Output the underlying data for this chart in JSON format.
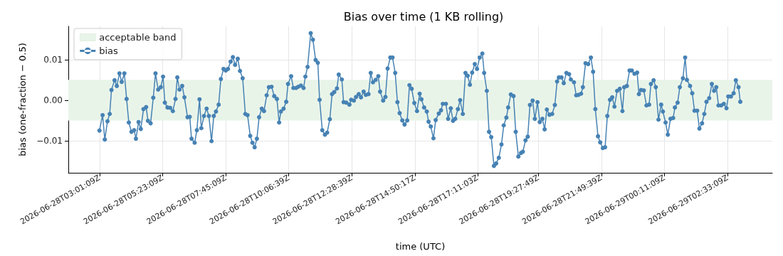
{
  "chart_data": {
    "type": "line",
    "title": "Bias over time (1 KB rolling)",
    "xlabel": "time (UTC)",
    "ylabel": "bias (one-fraction − 0.5)",
    "xlim": [
      "2026-06-28T01:51",
      "2026-06-29T04:14"
    ],
    "ylim": [
      -0.0179,
      0.0182
    ],
    "xticks": [
      {
        "value": "2026-06-28T03:01:09",
        "label": "2026-06-28T03:01:09Z"
      },
      {
        "value": "2026-06-28T05:23:09",
        "label": "2026-06-28T05:23:09Z"
      },
      {
        "value": "2026-06-28T07:45:09",
        "label": "2026-06-28T07:45:09Z"
      },
      {
        "value": "2026-06-28T10:06:39",
        "label": "2026-06-28T10:06:39Z"
      },
      {
        "value": "2026-06-28T12:28:39",
        "label": "2026-06-28T12:28:39Z"
      },
      {
        "value": "2026-06-28T14:50:17",
        "label": "2026-06-28T14:50:17Z"
      },
      {
        "value": "2026-06-28T17:11:03",
        "label": "2026-06-28T17:11:03Z"
      },
      {
        "value": "2026-06-28T19:27:49",
        "label": "2026-06-28T19:27:49Z"
      },
      {
        "value": "2026-06-28T21:49:39",
        "label": "2026-06-28T21:49:39Z"
      },
      {
        "value": "2026-06-29T00:11:09",
        "label": "2026-06-29T00:11:09Z"
      },
      {
        "value": "2026-06-29T02:33:09",
        "label": "2026-06-29T02:33:09Z"
      }
    ],
    "yticks": [
      {
        "value": -0.01,
        "label": "−0.01"
      },
      {
        "value": 0,
        "label": "0.00"
      },
      {
        "value": 0.01,
        "label": "0.01"
      }
    ],
    "grid": true,
    "legend": "top left",
    "marker": "circle",
    "line_style": "solid",
    "bands": [
      {
        "axis": "y",
        "from": -0.005,
        "to": 0.005,
        "label": "acceptable band",
        "color": "#e9f4e9"
      }
    ],
    "series": [
      {
        "name": "bias",
        "color": "#4682b4",
        "x": [
          "2026-06-28T03:01",
          "2026-06-28T03:08",
          "2026-06-28T03:13",
          "2026-06-28T03:19",
          "2026-06-28T03:24",
          "2026-06-28T03:28",
          "2026-06-28T03:35",
          "2026-06-28T03:40",
          "2026-06-28T03:46",
          "2026-06-28T03:51",
          "2026-06-28T03:57",
          "2026-06-28T04:02",
          "2026-06-28T04:07",
          "2026-06-28T04:13",
          "2026-06-28T04:19",
          "2026-06-28T04:23",
          "2026-06-28T04:29",
          "2026-06-28T04:34",
          "2026-06-28T04:40",
          "2026-06-28T04:46",
          "2026-06-28T04:50",
          "2026-06-28T04:56",
          "2026-06-28T05:02",
          "2026-06-28T05:07",
          "2026-06-28T05:13",
          "2026-06-28T05:19",
          "2026-06-28T05:24",
          "2026-06-28T05:28",
          "2026-06-28T05:34",
          "2026-06-28T05:40",
          "2026-06-28T05:46",
          "2026-06-28T05:52",
          "2026-06-28T05:56",
          "2026-06-28T06:01",
          "2026-06-28T06:07",
          "2026-06-28T06:12",
          "2026-06-28T06:19",
          "2026-06-28T06:24",
          "2026-06-28T06:28",
          "2026-06-28T06:35",
          "2026-06-28T06:40",
          "2026-06-28T06:46",
          "2026-06-28T06:50",
          "2026-06-28T06:56",
          "2026-06-28T07:02",
          "2026-06-28T07:07",
          "2026-06-28T07:13",
          "2026-06-28T07:18",
          "2026-06-28T07:23",
          "2026-06-28T07:29",
          "2026-06-28T07:34",
          "2026-06-28T07:40",
          "2026-06-28T07:45",
          "2026-06-28T07:50",
          "2026-06-28T07:56",
          "2026-06-28T08:01",
          "2026-06-28T08:06",
          "2026-06-28T08:12",
          "2026-06-28T08:17",
          "2026-06-28T08:23",
          "2026-06-28T08:29",
          "2026-06-28T08:34",
          "2026-06-28T08:40",
          "2026-06-28T08:45",
          "2026-06-28T08:50",
          "2026-06-28T08:55",
          "2026-06-28T09:00",
          "2026-06-28T09:06",
          "2026-06-28T09:11",
          "2026-06-28T09:17",
          "2026-06-28T09:22",
          "2026-06-28T09:28",
          "2026-06-28T09:34",
          "2026-06-28T09:40",
          "2026-06-28T09:45",
          "2026-06-28T09:49",
          "2026-06-28T09:55",
          "2026-06-28T10:01",
          "2026-06-28T10:05",
          "2026-06-28T10:12",
          "2026-06-28T10:17",
          "2026-06-28T10:23",
          "2026-06-28T10:28",
          "2026-06-28T10:34",
          "2026-06-28T10:40",
          "2026-06-28T10:44",
          "2026-06-28T10:49",
          "2026-06-28T10:56",
          "2026-06-28T11:01",
          "2026-06-28T11:07",
          "2026-06-28T11:12",
          "2026-06-28T11:16",
          "2026-06-28T11:22",
          "2026-06-28T11:28",
          "2026-06-28T11:33",
          "2026-06-28T11:39",
          "2026-06-28T11:44",
          "2026-06-28T11:49",
          "2026-06-28T11:55",
          "2026-06-28T11:59",
          "2026-06-28T12:06",
          "2026-06-28T12:10",
          "2026-06-28T12:16",
          "2026-06-28T12:23",
          "2026-06-28T12:27",
          "2026-06-28T12:33",
          "2026-06-28T12:38",
          "2026-06-28T12:44",
          "2026-06-28T12:49",
          "2026-06-28T12:55",
          "2026-06-28T13:00",
          "2026-06-28T13:06",
          "2026-06-28T13:11",
          "2026-06-28T13:16",
          "2026-06-28T13:22",
          "2026-06-28T13:28",
          "2026-06-28T13:32",
          "2026-06-28T13:39",
          "2026-06-28T13:44",
          "2026-06-28T13:49",
          "2026-06-28T13:55",
          "2026-06-28T14:00",
          "2026-06-28T14:06",
          "2026-06-28T14:11",
          "2026-06-28T14:16",
          "2026-06-28T14:22",
          "2026-06-28T14:27",
          "2026-06-28T14:33",
          "2026-06-28T14:38",
          "2026-06-28T14:43",
          "2026-06-28T14:49",
          "2026-06-28T14:55",
          "2026-06-28T15:01",
          "2026-06-28T15:05",
          "2026-06-28T15:11",
          "2026-06-28T15:17",
          "2026-06-28T15:21",
          "2026-06-28T15:26",
          "2026-06-28T15:32",
          "2026-06-28T15:37",
          "2026-06-28T15:44",
          "2026-06-28T15:49",
          "2026-06-28T15:53",
          "2026-06-28T16:00",
          "2026-06-28T16:05",
          "2026-06-28T16:11",
          "2026-06-28T16:16",
          "2026-06-28T16:21",
          "2026-06-28T16:27",
          "2026-06-28T16:32",
          "2026-06-28T16:38",
          "2026-06-28T16:44",
          "2026-06-28T16:49",
          "2026-06-28T16:54",
          "2026-06-28T16:59",
          "2026-06-28T17:05",
          "2026-06-28T17:10",
          "2026-06-28T17:16",
          "2026-06-28T17:22",
          "2026-06-28T17:26",
          "2026-06-28T17:32",
          "2026-06-28T17:37",
          "2026-06-28T17:42",
          "2026-06-28T17:48",
          "2026-06-28T17:53",
          "2026-06-28T17:59",
          "2026-06-28T18:05",
          "2026-06-28T18:10",
          "2026-06-28T18:16",
          "2026-06-28T18:20",
          "2026-06-28T18:26",
          "2026-06-28T18:32",
          "2026-06-28T18:37",
          "2026-06-28T18:43",
          "2026-06-28T18:49",
          "2026-06-28T18:53",
          "2026-06-28T18:59",
          "2026-06-28T19:04",
          "2026-06-28T19:09",
          "2026-06-28T19:15",
          "2026-06-28T19:20",
          "2026-06-28T19:26",
          "2026-06-28T19:31",
          "2026-06-28T19:37",
          "2026-06-28T19:42",
          "2026-06-28T19:47",
          "2026-06-28T19:53",
          "2026-06-28T19:59",
          "2026-06-28T20:05",
          "2026-06-28T20:10",
          "2026-06-28T20:14",
          "2026-06-28T20:20",
          "2026-06-28T20:25",
          "2026-06-28T20:31",
          "2026-06-28T20:37",
          "2026-06-28T20:41",
          "2026-06-28T20:48",
          "2026-06-28T20:53",
          "2026-06-28T20:58",
          "2026-06-28T21:04",
          "2026-06-28T21:08",
          "2026-06-28T21:14",
          "2026-06-28T21:20",
          "2026-06-28T21:26",
          "2026-06-28T21:31",
          "2026-06-28T21:36",
          "2026-06-28T21:42",
          "2026-06-28T21:47",
          "2026-06-28T21:53",
          "2026-06-28T21:58",
          "2026-06-28T22:03",
          "2026-06-28T22:09",
          "2026-06-28T22:14",
          "2026-06-28T22:19",
          "2026-06-28T22:25",
          "2026-06-28T22:31",
          "2026-06-28T22:37",
          "2026-06-28T22:41",
          "2026-06-28T22:47",
          "2026-06-28T22:53",
          "2026-06-28T22:58",
          "2026-06-28T23:04",
          "2026-06-28T23:10",
          "2026-06-28T23:14",
          "2026-06-28T23:19",
          "2026-06-28T23:25",
          "2026-06-28T23:31",
          "2026-06-28T23:37",
          "2026-06-28T23:41",
          "2026-06-28T23:47",
          "2026-06-28T23:52",
          "2026-06-28T23:58",
          "2026-06-29T00:04",
          "2026-06-29T00:08",
          "2026-06-29T00:14",
          "2026-06-29T00:19",
          "2026-06-29T00:25",
          "2026-06-29T00:31",
          "2026-06-29T00:35",
          "2026-06-29T00:41",
          "2026-06-29T00:46",
          "2026-06-29T00:53",
          "2026-06-29T00:58",
          "2026-06-29T01:02",
          "2026-06-29T01:09",
          "2026-06-29T01:14",
          "2026-06-29T01:19",
          "2026-06-29T01:25",
          "2026-06-29T01:30",
          "2026-06-29T01:36",
          "2026-06-29T01:41",
          "2026-06-29T01:46",
          "2026-06-29T01:52",
          "2026-06-29T01:58",
          "2026-06-29T02:03",
          "2026-06-29T02:08",
          "2026-06-29T02:13",
          "2026-06-29T02:19",
          "2026-06-29T02:25",
          "2026-06-29T02:31",
          "2026-06-29T02:35",
          "2026-06-29T02:41",
          "2026-06-29T02:47",
          "2026-06-29T02:52",
          "2026-06-29T02:58",
          "2026-06-29T03:02"
        ],
        "values": [
          -0.0075,
          -0.0037,
          -0.0097,
          -0.0052,
          -0.0034,
          0.0025,
          0.0049,
          0.0035,
          0.0066,
          0.0045,
          0.0066,
          0.0003,
          -0.0055,
          -0.0078,
          -0.0074,
          -0.0095,
          -0.0054,
          -0.0071,
          -0.0022,
          -0.0017,
          -0.0051,
          -0.0057,
          0.0006,
          0.0066,
          0.0026,
          0.0032,
          0.0058,
          -0.0006,
          -0.0018,
          -0.0019,
          -0.0027,
          0.0003,
          0.0056,
          0.0026,
          0.0035,
          0.0007,
          -0.0042,
          -0.0041,
          -0.0095,
          -0.0105,
          -0.0074,
          0.0002,
          -0.0069,
          -0.0039,
          -0.0021,
          -0.0039,
          -0.0101,
          -0.0039,
          -0.0028,
          -0.0011,
          0.0052,
          0.0077,
          0.0073,
          0.0077,
          0.0095,
          0.0106,
          0.0087,
          0.0102,
          0.0072,
          0.0054,
          -0.0034,
          -0.0037,
          -0.0088,
          -0.0105,
          -0.0116,
          -0.0095,
          -0.0042,
          -0.0021,
          -0.0027,
          0.0012,
          0.0032,
          0.0033,
          0.001,
          0.0003,
          -0.0055,
          -0.0028,
          -0.0021,
          -0.0004,
          0.004,
          0.0059,
          0.003,
          0.003,
          0.0033,
          0.0036,
          0.003,
          0.0058,
          0.0082,
          0.0165,
          0.0149,
          0.0099,
          0.0092,
          0.0001,
          -0.0074,
          -0.0085,
          -0.008,
          -0.0047,
          0.0015,
          0.002,
          0.0029,
          0.0063,
          0.0051,
          -0.0005,
          -0.0006,
          -0.0011,
          0.0001,
          -0.0001,
          0.0008,
          0.0015,
          0.0007,
          0.0021,
          0.0013,
          0.0015,
          0.0067,
          0.0044,
          0.005,
          0.0059,
          0.0021,
          -0.0001,
          0.0008,
          0.0078,
          0.0105,
          0.0105,
          0.0067,
          -0.0005,
          -0.0032,
          -0.005,
          -0.006,
          -0.005,
          0.0037,
          0.0028,
          -0.0007,
          -0.0027,
          0.0016,
          0.0002,
          -0.0018,
          -0.0028,
          -0.0053,
          -0.0065,
          -0.0094,
          -0.0049,
          -0.0033,
          -0.0025,
          -0.0009,
          -0.0009,
          -0.0046,
          -0.002,
          -0.0051,
          -0.0046,
          -0.0022,
          0.0,
          -0.0034,
          0.0067,
          0.006,
          0.0038,
          0.0068,
          0.0089,
          0.0077,
          0.0105,
          0.0115,
          0.0067,
          0.0023,
          -0.0078,
          -0.0091,
          -0.0162,
          -0.0156,
          -0.0142,
          -0.0109,
          -0.0062,
          -0.0043,
          -0.0018,
          0.0014,
          0.001,
          -0.0078,
          -0.0139,
          -0.013,
          -0.0127,
          -0.0099,
          -0.009,
          -0.0012,
          -0.0001,
          -0.0046,
          -0.0005,
          -0.0054,
          -0.0046,
          -0.0072,
          -0.0023,
          -0.0036,
          -0.0034,
          -0.0012,
          0.0046,
          0.0056,
          0.0056,
          0.0042,
          0.0067,
          0.0064,
          0.0051,
          0.0044,
          0.0012,
          0.0013,
          0.0016,
          0.0032,
          0.0091,
          0.0089,
          0.0105,
          0.007,
          -0.0022,
          -0.0089,
          -0.0104,
          -0.0118,
          -0.0116,
          -0.0039,
          0.0001,
          0.0007,
          -0.0016,
          0.0023,
          0.0028,
          -0.0027,
          0.0032,
          0.0035,
          0.0073,
          0.0073,
          0.0065,
          0.0068,
          0.0015,
          0.0025,
          0.0024,
          -0.0013,
          -0.0011,
          0.004,
          0.0049,
          0.0032,
          -0.0048,
          -0.0011,
          -0.0028,
          -0.0055,
          -0.0085,
          -0.0046,
          -0.0044,
          -0.0018,
          -0.0006,
          0.0032,
          0.0054,
          0.0105,
          0.005,
          0.0035,
          0.0017,
          -0.0026,
          -0.0026,
          -0.007,
          -0.0057,
          -0.0034,
          -0.0004,
          0.0005,
          0.004,
          0.0023,
          0.0032,
          -0.0013,
          -0.0013,
          -0.0009,
          -0.002,
          0.0009,
          0.0009,
          0.0017,
          0.0049,
          0.0032,
          -0.0004
        ]
      }
    ]
  }
}
